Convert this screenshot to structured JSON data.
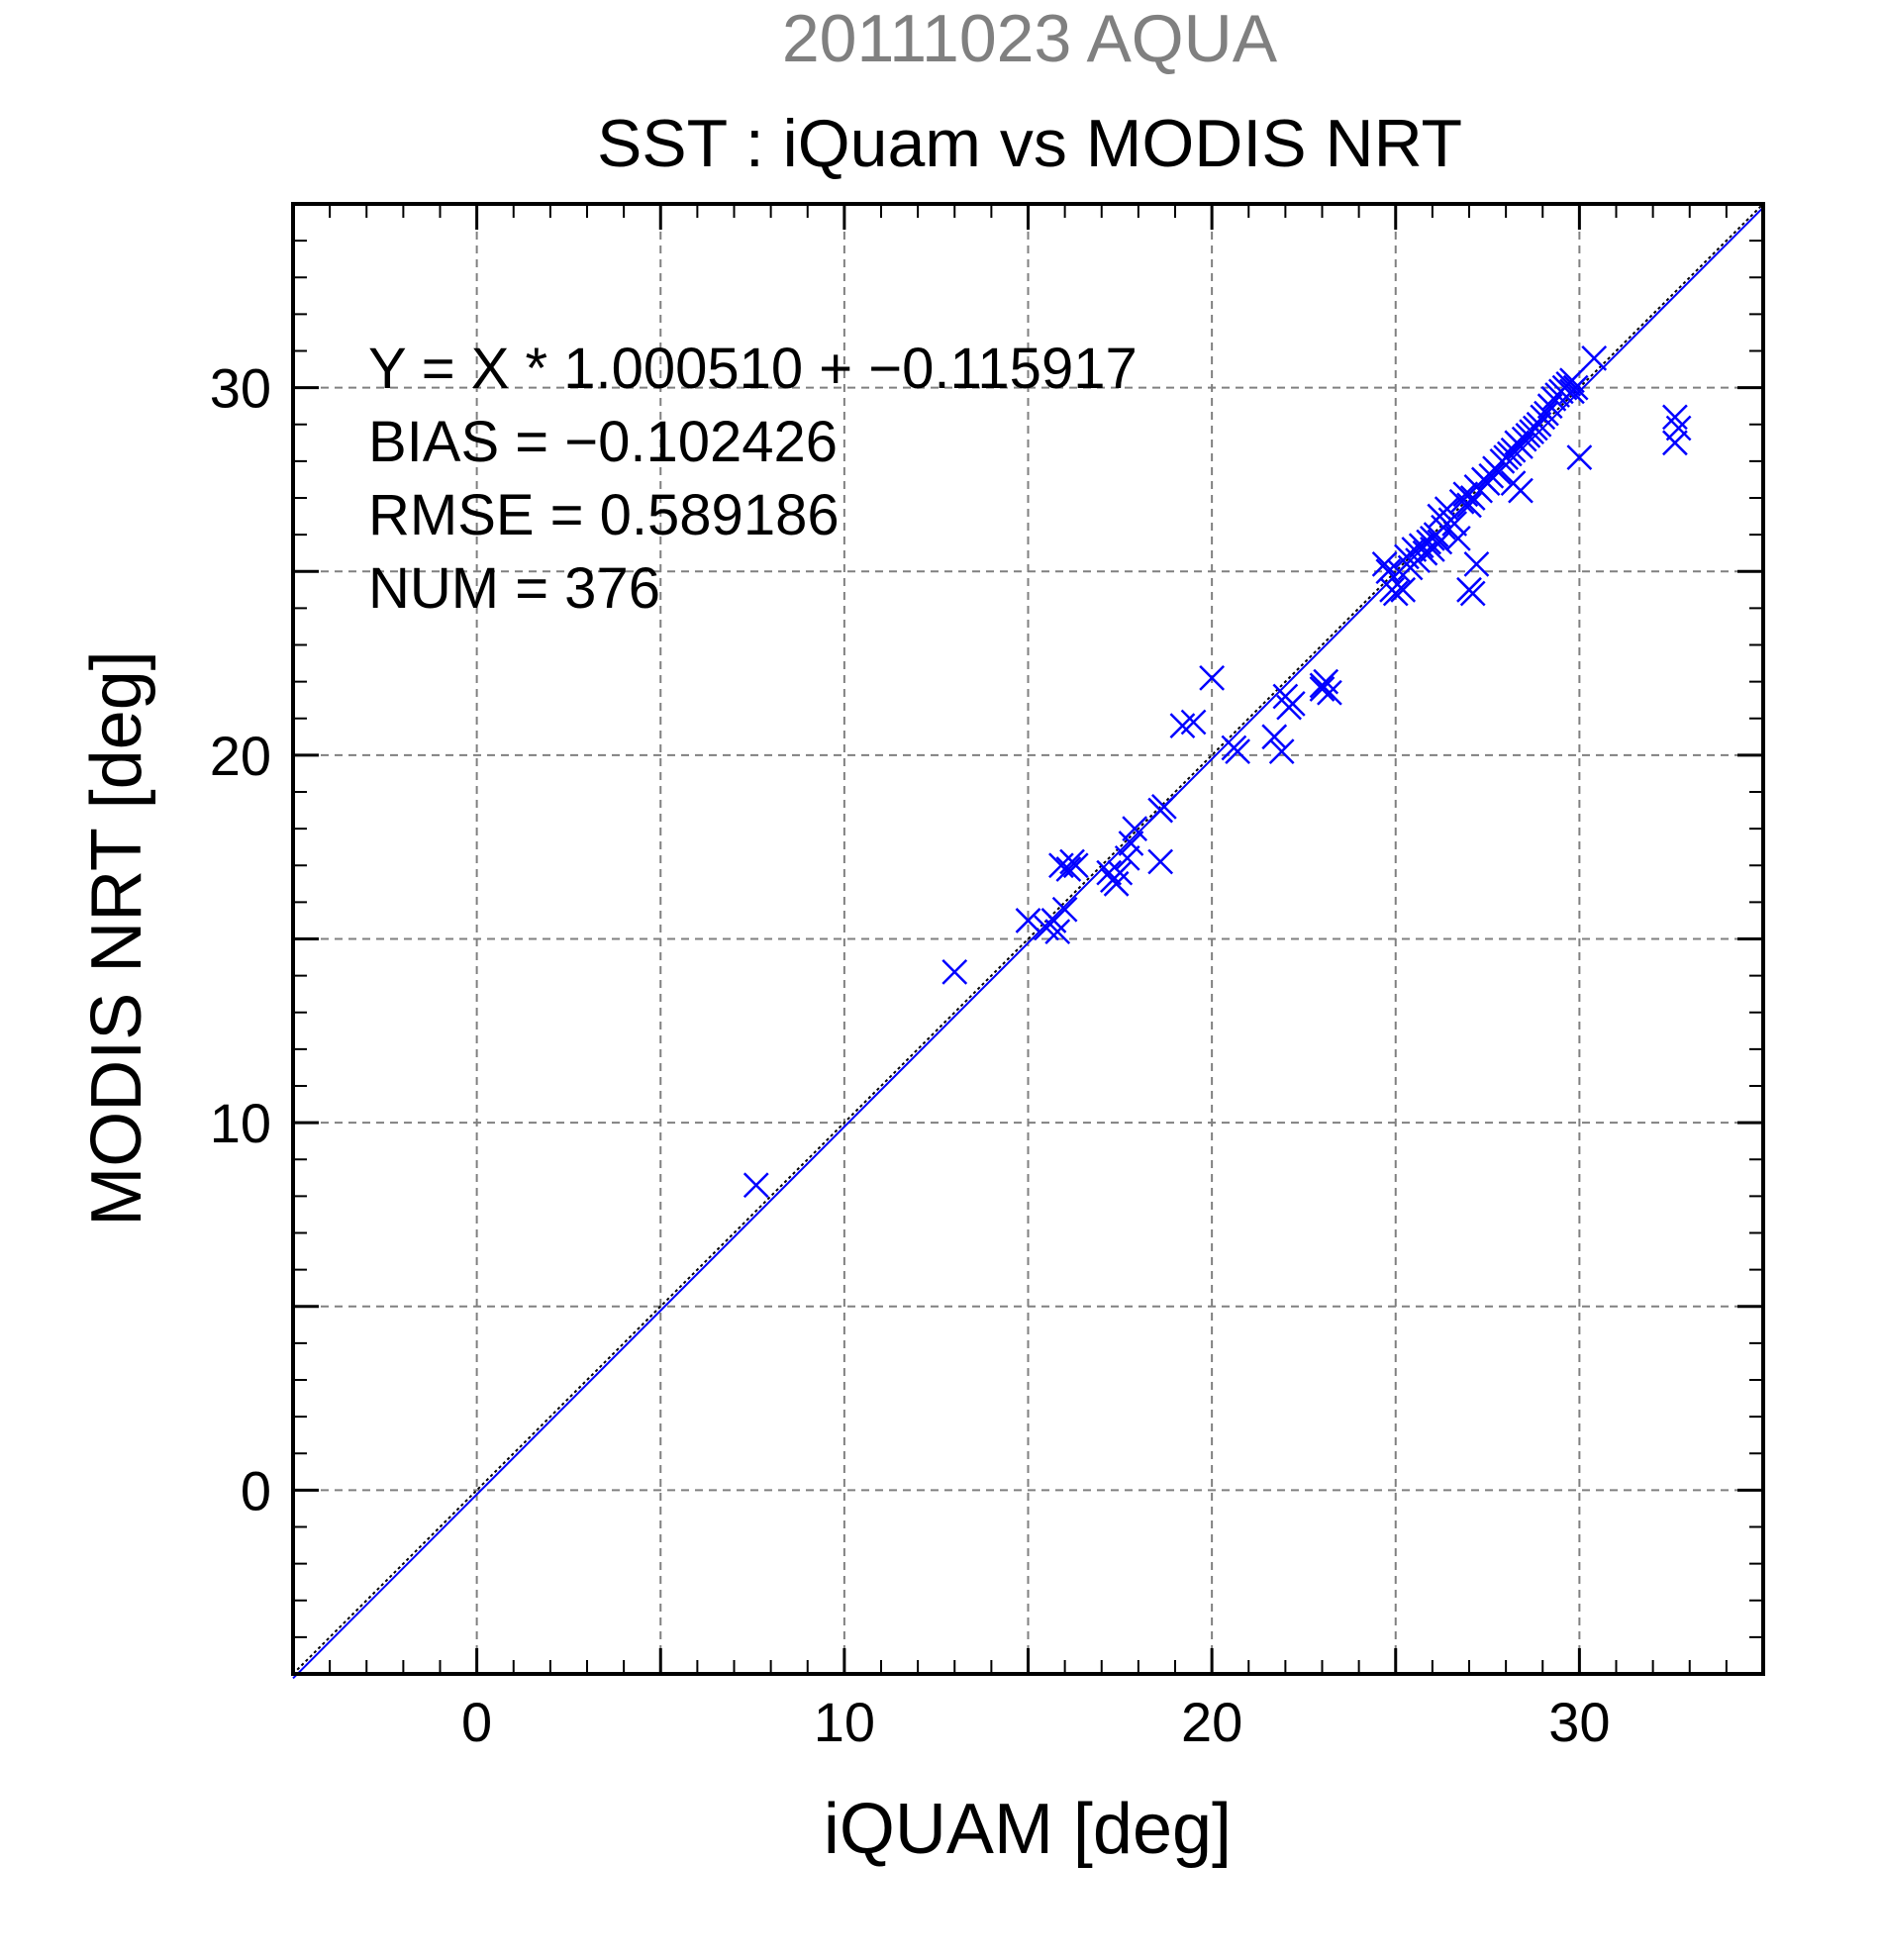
{
  "chart_data": {
    "type": "scatter",
    "supertitle": "20111023 AQUA",
    "title": "SST : iQuam vs MODIS NRT",
    "xlabel": "iQUAM [deg]",
    "ylabel": "MODIS NRT [deg]",
    "xlim": [
      -5,
      35
    ],
    "ylim": [
      -5,
      35
    ],
    "xticks": [
      0,
      10,
      20,
      30
    ],
    "yticks": [
      0,
      10,
      20,
      30
    ],
    "grid": true,
    "colors": {
      "points": "#0000ff",
      "supertitle": "#808080",
      "fit_line": "#00008b",
      "grid": "#808080"
    },
    "stats": [
      "Y = X * 1.000510 + −0.115917",
      "BIAS = −0.102426",
      "RMSE = 0.589186",
      "NUM = 376"
    ],
    "fit_line": {
      "slope": 1.00051,
      "intercept": -0.115917
    },
    "series": [
      {
        "marker": "x",
        "x": [
          7.6,
          13.0,
          15.0,
          15.5,
          15.7,
          15.8,
          16.0,
          15.9,
          16.2,
          16.1,
          16.3,
          17.2,
          17.4,
          17.5,
          17.3,
          17.7,
          17.8,
          17.9,
          18.6,
          18.7,
          18.6,
          19.2,
          19.5,
          20.0,
          20.6,
          20.7,
          21.7,
          21.9,
          22.0,
          22.1,
          22.2,
          23.0,
          23.1,
          23.2,
          23.0,
          24.7,
          24.9,
          25.0,
          25.1,
          25.2,
          24.8,
          25.3,
          25.4,
          25.5,
          25.6,
          25.7,
          25.8,
          25.9,
          26.0,
          26.1,
          26.2,
          26.3,
          26.4,
          26.5,
          26.6,
          26.0,
          26.2,
          26.8,
          26.9,
          27.0,
          27.1,
          27.2,
          27.3,
          27.0,
          27.1,
          27.2,
          26.7,
          27.4,
          27.5,
          27.6,
          27.7,
          27.8,
          27.9,
          28.0,
          28.1,
          28.2,
          28.3,
          28.4,
          28.5,
          28.6,
          28.7,
          28.8,
          28.2,
          28.4,
          28.9,
          29.0,
          29.1,
          29.2,
          29.3,
          29.4,
          29.5,
          29.6,
          29.7,
          29.8,
          29.9,
          30.0,
          29.8,
          30.4,
          32.6,
          32.7,
          32.6
        ],
        "y": [
          8.3,
          14.1,
          15.5,
          15.3,
          15.5,
          15.2,
          15.8,
          17.0,
          17.1,
          16.9,
          17.0,
          16.8,
          16.5,
          16.8,
          16.6,
          17.2,
          17.6,
          18.0,
          18.5,
          18.6,
          17.1,
          20.8,
          20.9,
          22.1,
          20.2,
          20.1,
          20.5,
          20.1,
          21.6,
          21.3,
          21.4,
          21.8,
          22.0,
          21.7,
          21.9,
          25.2,
          24.5,
          24.4,
          25.0,
          24.5,
          25.0,
          25.4,
          25.1,
          25.6,
          25.3,
          25.7,
          25.5,
          25.8,
          25.9,
          26.0,
          26.5,
          26.2,
          26.7,
          26.4,
          26.3,
          25.6,
          25.8,
          26.9,
          27.1,
          26.8,
          27.0,
          27.3,
          27.2,
          24.5,
          24.4,
          25.2,
          25.9,
          27.5,
          27.4,
          27.6,
          27.8,
          27.7,
          28.0,
          28.1,
          28.2,
          28.3,
          28.5,
          28.4,
          28.6,
          28.7,
          28.8,
          28.9,
          27.4,
          27.2,
          29.0,
          29.2,
          29.3,
          29.5,
          29.7,
          29.8,
          29.9,
          30.0,
          30.1,
          30.2,
          30.0,
          28.1,
          29.9,
          30.8,
          29.2,
          28.9,
          28.5
        ]
      }
    ]
  }
}
